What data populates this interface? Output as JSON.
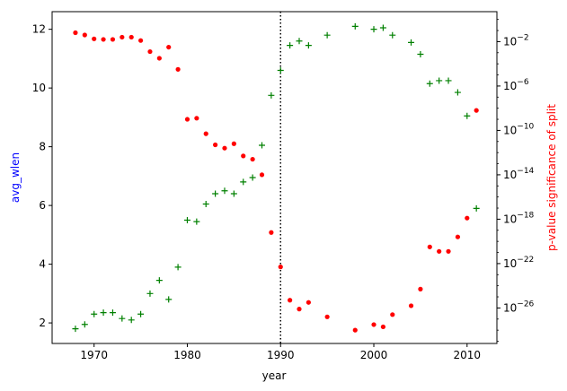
{
  "chart_data": {
    "type": "scatter",
    "xlabel": "year",
    "ylabel_left": "avg_wlen",
    "ylabel_right": "p-value significance of split",
    "ylabel_left_color": "#0000ff",
    "ylabel_right_color": "#ff0000",
    "xlim": [
      1965.5,
      2013.2
    ],
    "ylim_left": [
      1.3,
      12.6
    ],
    "ylim_right_log10": [
      -29.2,
      0.7
    ],
    "right_axis_scale": "log",
    "x_ticks": [
      1970,
      1980,
      1990,
      2000,
      2010
    ],
    "x_tick_labels": [
      "1970",
      "1980",
      "1990",
      "2000",
      "2010"
    ],
    "y_left_ticks": [
      2,
      4,
      6,
      8,
      10,
      12
    ],
    "y_left_tick_labels": [
      "2",
      "4",
      "6",
      "8",
      "10",
      "12"
    ],
    "y_right_tick_exponents": [
      -2,
      -6,
      -10,
      -14,
      -18,
      -22,
      -26
    ],
    "y_right_tick_base": "10",
    "vline": {
      "x": 1990,
      "style": "dotted",
      "color": "#000000"
    },
    "grid": false,
    "series": [
      {
        "marker": "plus",
        "color": "#008000",
        "axis": "left",
        "x": [
          1968,
          1969,
          1970,
          1971,
          1972,
          1973,
          1974,
          1975,
          1976,
          1977,
          1978,
          1979,
          1980,
          1981,
          1982,
          1983,
          1984,
          1985,
          1986,
          1987,
          1988,
          1989,
          1990,
          1991,
          1992,
          1993,
          1995,
          1998,
          2000,
          2001,
          2002,
          2004,
          2005,
          2006,
          2007,
          2008,
          2009,
          2010,
          2011
        ],
        "y": [
          1.8,
          1.95,
          2.3,
          2.35,
          2.35,
          2.15,
          2.1,
          2.3,
          3.0,
          3.45,
          2.8,
          3.9,
          5.5,
          5.45,
          6.05,
          6.4,
          6.5,
          6.4,
          6.8,
          6.95,
          8.05,
          9.75,
          10.6,
          11.45,
          11.6,
          11.45,
          11.8,
          12.1,
          12.0,
          12.05,
          11.8,
          11.55,
          11.15,
          10.15,
          10.25,
          10.25,
          9.85,
          9.05,
          5.9
        ]
      },
      {
        "marker": "dot",
        "color": "#ff0000",
        "axis": "right",
        "x": [
          1968,
          1969,
          1970,
          1971,
          1972,
          1973,
          1974,
          1975,
          1976,
          1977,
          1978,
          1979,
          1980,
          1981,
          1982,
          1983,
          1984,
          1985,
          1986,
          1987,
          1988,
          1989,
          1990,
          1991,
          1992,
          1993,
          1995,
          1998,
          2000,
          2001,
          2002,
          2004,
          2005,
          2006,
          2007,
          2008,
          2009,
          2010,
          2011
        ],
        "y_log10": [
          -1.2,
          -1.4,
          -1.75,
          -1.8,
          -1.8,
          -1.6,
          -1.6,
          -1.9,
          -2.9,
          -3.5,
          -2.5,
          -4.5,
          -9.0,
          -8.9,
          -10.3,
          -11.3,
          -11.6,
          -11.2,
          -12.3,
          -12.6,
          -14.0,
          -19.2,
          -22.3,
          -25.3,
          -26.1,
          -25.5,
          -26.8,
          -28.0,
          -27.5,
          -27.7,
          -26.6,
          -25.8,
          -24.3,
          -20.5,
          -20.9,
          -20.9,
          -19.6,
          -17.9,
          -8.2
        ]
      }
    ]
  }
}
